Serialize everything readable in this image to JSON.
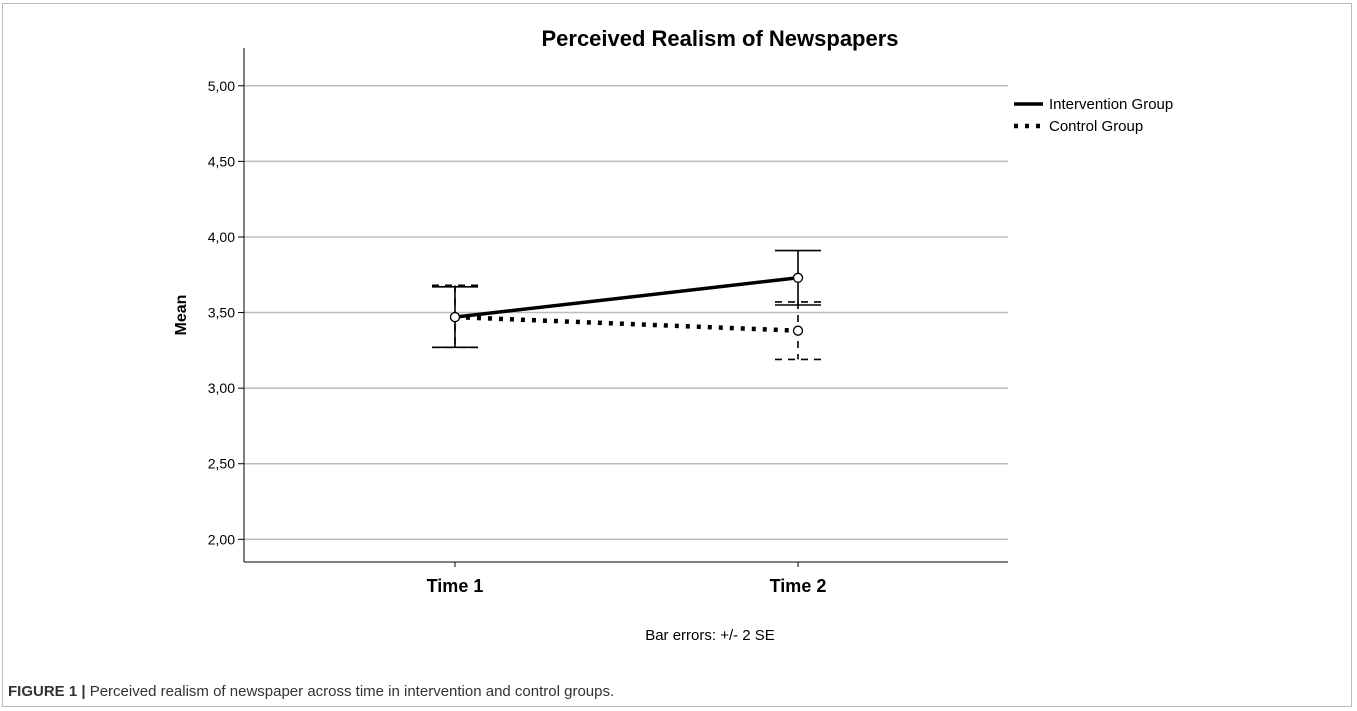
{
  "chart_data": {
    "type": "line",
    "title": "Perceived Realism of Newspapers",
    "ylabel": "Mean",
    "xlabel": "",
    "categories": [
      "Time 1",
      "Time 2"
    ],
    "ylim": [
      1.85,
      5.25
    ],
    "yticks": [
      2.0,
      2.5,
      3.0,
      3.5,
      4.0,
      4.5,
      5.0
    ],
    "ytick_labels": [
      "2,00",
      "2,50",
      "3,00",
      "3,50",
      "4,00",
      "4,50",
      "5,00"
    ],
    "grid": "horizontal",
    "legend": "top-right",
    "footnote": "Bar errors: +/- 2 SE",
    "series": [
      {
        "name": "Intervention Group",
        "style": "solid",
        "values": [
          3.47,
          3.73
        ],
        "error_low": [
          3.27,
          3.55
        ],
        "error_high": [
          3.67,
          3.91
        ]
      },
      {
        "name": "Control Group",
        "style": "dotted",
        "values": [
          3.47,
          3.38
        ],
        "error_low": [
          3.27,
          3.19
        ],
        "error_high": [
          3.68,
          3.57
        ]
      }
    ]
  },
  "caption": {
    "label": "FIGURE 1 |",
    "text": " Perceived realism of newspaper across time in intervention and control groups."
  }
}
